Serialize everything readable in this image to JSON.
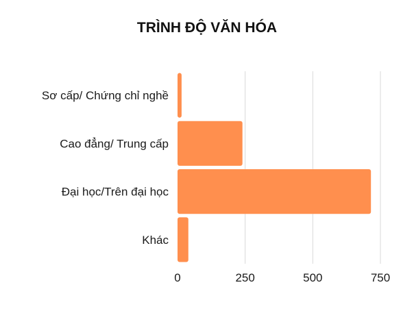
{
  "chart_data": {
    "type": "bar",
    "orientation": "horizontal",
    "title": "TRÌNH ĐỘ VĂN HÓA",
    "categories": [
      "Sơ cấp/ Chứng chỉ nghề",
      "Cao đẳng/ Trung cấp",
      "Đại học/Trên đại học",
      "Khác"
    ],
    "values": [
      15,
      240,
      715,
      40
    ],
    "xlim": [
      0,
      750
    ],
    "xticks": [
      0,
      250,
      500,
      750
    ],
    "xtick_labels": [
      "0",
      "250",
      "500",
      "750"
    ],
    "grid": true,
    "bar_color": "#ff8f4e"
  }
}
